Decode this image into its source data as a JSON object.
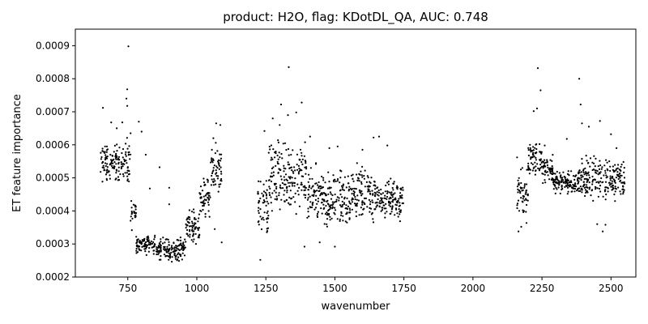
{
  "chart_data": {
    "type": "scatter",
    "title": "product: H2O, flag: KDotDL_QA, AUC: 0.748",
    "xlabel": "wavenumber",
    "ylabel": "ET feature importance",
    "xlim": [
      560,
      2590
    ],
    "ylim": [
      0.0002,
      0.00095
    ],
    "x_ticks": [
      750,
      1000,
      1250,
      1500,
      1750,
      2000,
      2250,
      2500
    ],
    "y_ticks": [
      0.0002,
      0.0003,
      0.0004,
      0.0005,
      0.0006,
      0.0007,
      0.0008,
      0.0009
    ],
    "x_tick_labels": [
      "750",
      "1000",
      "1250",
      "1500",
      "1750",
      "2000",
      "2250",
      "2500"
    ],
    "y_tick_labels": [
      "0.0002",
      "0.0003",
      "0.0004",
      "0.0005",
      "0.0006",
      "0.0007",
      "0.0008",
      "0.0009"
    ],
    "grid": false,
    "marker_color": "#000000",
    "segments": [
      {
        "x_range": [
          650,
          735
        ],
        "y_band": [
          0.00047,
          0.00062
        ]
      },
      {
        "x_range": [
          735,
          760
        ],
        "y_band": [
          0.00045,
          0.00064
        ]
      },
      {
        "x_range": [
          760,
          780
        ],
        "y_band": [
          0.00033,
          0.00045
        ]
      },
      {
        "x_range": [
          780,
          850
        ],
        "y_band": [
          0.00026,
          0.00034
        ]
      },
      {
        "x_range": [
          850,
          960
        ],
        "y_band": [
          0.00024,
          0.00033
        ]
      },
      {
        "x_range": [
          960,
          1010
        ],
        "y_band": [
          0.00028,
          0.00042
        ]
      },
      {
        "x_range": [
          1010,
          1050
        ],
        "y_band": [
          0.00036,
          0.00052
        ]
      },
      {
        "x_range": [
          1050,
          1090
        ],
        "y_band": [
          0.00042,
          0.00062
        ]
      },
      {
        "x_range": [
          1220,
          1260
        ],
        "y_band": [
          0.00028,
          0.00052
        ]
      },
      {
        "x_range": [
          1260,
          1400
        ],
        "y_band": [
          0.00034,
          0.00066
        ]
      },
      {
        "x_range": [
          1400,
          1460
        ],
        "y_band": [
          0.00033,
          0.00056
        ]
      },
      {
        "x_range": [
          1460,
          1560
        ],
        "y_band": [
          0.00032,
          0.00055
        ]
      },
      {
        "x_range": [
          1560,
          1650
        ],
        "y_band": [
          0.00033,
          0.00058
        ]
      },
      {
        "x_range": [
          1650,
          1750
        ],
        "y_band": [
          0.00035,
          0.00052
        ]
      },
      {
        "x_range": [
          2160,
          2200
        ],
        "y_band": [
          0.00035,
          0.00055
        ]
      },
      {
        "x_range": [
          2200,
          2250
        ],
        "y_band": [
          0.00048,
          0.00064
        ]
      },
      {
        "x_range": [
          2250,
          2290
        ],
        "y_band": [
          0.00047,
          0.00058
        ]
      },
      {
        "x_range": [
          2290,
          2380
        ],
        "y_band": [
          0.00044,
          0.00053
        ]
      },
      {
        "x_range": [
          2380,
          2470
        ],
        "y_band": [
          0.00042,
          0.00059
        ]
      },
      {
        "x_range": [
          2470,
          2550
        ],
        "y_band": [
          0.00041,
          0.00058
        ]
      }
    ],
    "points": [
      [
        660,
        0.000712
      ],
      [
        752,
        0.000898
      ],
      [
        748,
        0.000768
      ],
      [
        745,
        0.00074
      ],
      [
        748,
        0.000718
      ],
      [
        790,
        0.00067
      ],
      [
        800,
        0.00064
      ],
      [
        730,
        0.000668
      ],
      [
        690,
        0.000668
      ],
      [
        710,
        0.00065
      ],
      [
        815,
        0.00057
      ],
      [
        830,
        0.000468
      ],
      [
        865,
        0.000532
      ],
      [
        760,
        0.000635
      ],
      [
        900,
        0.00047
      ],
      [
        1333,
        0.000835
      ],
      [
        1305,
        0.000722
      ],
      [
        1380,
        0.000728
      ],
      [
        1360,
        0.000698
      ],
      [
        1330,
        0.00069
      ],
      [
        1245,
        0.000642
      ],
      [
        1275,
        0.00068
      ],
      [
        1300,
        0.00066
      ],
      [
        1410,
        0.000625
      ],
      [
        1480,
        0.00059
      ],
      [
        1510,
        0.000595
      ],
      [
        1640,
        0.000622
      ],
      [
        1660,
        0.000625
      ],
      [
        1690,
        0.000598
      ],
      [
        1600,
        0.000585
      ],
      [
        1230,
        0.000252
      ],
      [
        1390,
        0.000292
      ],
      [
        1445,
        0.000305
      ],
      [
        1500,
        0.000292
      ],
      [
        1070,
        0.000665
      ],
      [
        1085,
        0.00066
      ],
      [
        1060,
        0.00062
      ],
      [
        1090,
        0.000305
      ],
      [
        1065,
        0.000345
      ],
      [
        900,
        0.00042
      ],
      [
        2235,
        0.000832
      ],
      [
        2245,
        0.000765
      ],
      [
        2232,
        0.00071
      ],
      [
        2220,
        0.000702
      ],
      [
        2385,
        0.0008
      ],
      [
        2390,
        0.000722
      ],
      [
        2460,
        0.000672
      ],
      [
        2395,
        0.000665
      ],
      [
        2420,
        0.000655
      ],
      [
        2500,
        0.000632
      ],
      [
        2165,
        0.000338
      ],
      [
        2175,
        0.000352
      ],
      [
        2470,
        0.000338
      ],
      [
        2450,
        0.00036
      ],
      [
        2480,
        0.000358
      ],
      [
        2340,
        0.000618
      ],
      [
        2260,
        0.000598
      ],
      [
        2160,
        0.000562
      ],
      [
        2545,
        0.000548
      ],
      [
        2520,
        0.00059
      ]
    ]
  }
}
